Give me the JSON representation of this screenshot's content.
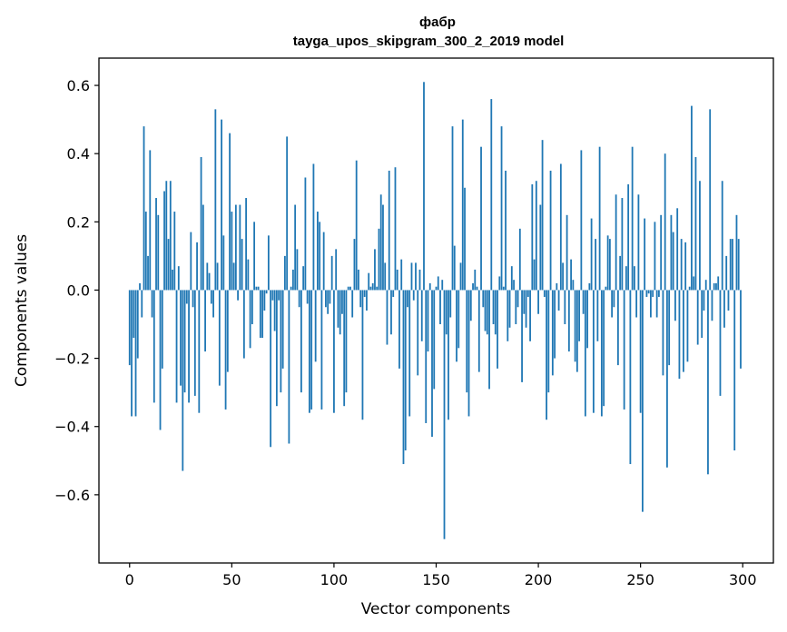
{
  "chart_data": {
    "type": "bar",
    "title": "фабр",
    "subtitle": "tayga_upos_skipgram_300_2_2019 model",
    "xlabel": "Vector components",
    "ylabel": "Components values",
    "xlim": [
      -15,
      315
    ],
    "ylim": [
      -0.8,
      0.68
    ],
    "xticks": [
      {
        "value": 0,
        "label": "0"
      },
      {
        "value": 50,
        "label": "50"
      },
      {
        "value": 100,
        "label": "100"
      },
      {
        "value": 150,
        "label": "150"
      },
      {
        "value": 200,
        "label": "200"
      },
      {
        "value": 250,
        "label": "250"
      },
      {
        "value": 300,
        "label": "300"
      }
    ],
    "yticks": [
      {
        "value": 0.6,
        "label": "0.6"
      },
      {
        "value": 0.4,
        "label": "0.4"
      },
      {
        "value": 0.2,
        "label": "0.2"
      },
      {
        "value": 0.0,
        "label": "0.0"
      },
      {
        "value": -0.2,
        "label": "−0.2"
      },
      {
        "value": -0.4,
        "label": "−0.4"
      },
      {
        "value": -0.6,
        "label": "−0.6"
      }
    ],
    "bar_color": "#1f77b4",
    "values": [
      -0.22,
      -0.37,
      -0.14,
      -0.37,
      -0.2,
      0.02,
      -0.08,
      0.48,
      0.23,
      0.1,
      0.41,
      -0.08,
      -0.33,
      0.27,
      0.22,
      -0.41,
      -0.23,
      0.29,
      0.32,
      0.15,
      0.32,
      0.06,
      0.23,
      -0.33,
      0.07,
      -0.28,
      -0.53,
      -0.3,
      -0.04,
      -0.33,
      0.17,
      -0.05,
      -0.31,
      0.14,
      -0.36,
      0.39,
      0.25,
      -0.18,
      0.08,
      0.05,
      -0.04,
      -0.08,
      0.53,
      0.08,
      -0.28,
      0.5,
      0.16,
      -0.35,
      -0.24,
      0.46,
      0.23,
      0.08,
      0.25,
      -0.03,
      0.25,
      0.15,
      -0.2,
      0.27,
      0.09,
      -0.17,
      -0.1,
      0.2,
      0.01,
      0.01,
      -0.14,
      -0.14,
      -0.06,
      -0.01,
      0.16,
      -0.46,
      -0.03,
      -0.12,
      -0.34,
      -0.03,
      -0.3,
      -0.23,
      0.1,
      0.45,
      -0.45,
      0.01,
      0.06,
      0.25,
      0.12,
      -0.05,
      -0.3,
      0.07,
      0.33,
      -0.04,
      -0.36,
      -0.35,
      0.37,
      -0.21,
      0.23,
      0.2,
      -0.35,
      0.17,
      -0.05,
      -0.07,
      -0.04,
      0.1,
      -0.36,
      0.12,
      -0.11,
      -0.13,
      -0.07,
      -0.34,
      -0.3,
      0.01,
      0.01,
      -0.08,
      0.15,
      0.38,
      0.06,
      -0.05,
      -0.38,
      -0.02,
      -0.06,
      0.05,
      0.01,
      0.02,
      0.12,
      0.01,
      0.18,
      0.28,
      0.25,
      0.08,
      -0.16,
      0.35,
      -0.13,
      -0.02,
      0.36,
      0.06,
      -0.23,
      0.09,
      -0.51,
      -0.47,
      -0.05,
      -0.37,
      0.08,
      -0.03,
      0.08,
      -0.25,
      0.06,
      -0.15,
      0.61,
      -0.39,
      -0.18,
      0.02,
      -0.43,
      -0.29,
      0.01,
      0.04,
      -0.1,
      0.03,
      -0.73,
      -0.13,
      -0.38,
      -0.08,
      0.48,
      0.13,
      -0.21,
      -0.17,
      0.08,
      0.5,
      0.3,
      -0.3,
      -0.37,
      -0.09,
      0.02,
      0.06,
      0.01,
      -0.24,
      0.42,
      -0.05,
      -0.12,
      -0.13,
      -0.29,
      0.56,
      -0.1,
      -0.13,
      -0.23,
      0.04,
      0.48,
      0.01,
      0.35,
      -0.15,
      -0.11,
      0.07,
      0.03,
      -0.1,
      -0.05,
      0.18,
      -0.27,
      -0.07,
      -0.11,
      -0.02,
      -0.15,
      0.31,
      0.09,
      0.32,
      -0.07,
      0.25,
      0.44,
      -0.02,
      -0.38,
      -0.3,
      0.35,
      -0.25,
      -0.2,
      0.02,
      -0.06,
      0.37,
      0.08,
      -0.1,
      0.22,
      -0.18,
      0.09,
      0.03,
      -0.21,
      -0.24,
      -0.15,
      0.41,
      -0.07,
      -0.37,
      -0.17,
      0.02,
      0.21,
      -0.36,
      0.15,
      -0.15,
      0.42,
      -0.37,
      -0.34,
      0.01,
      0.16,
      0.15,
      -0.08,
      -0.05,
      0.28,
      -0.22,
      0.1,
      0.27,
      -0.35,
      0.07,
      0.31,
      -0.51,
      0.42,
      0.07,
      -0.08,
      0.28,
      -0.36,
      -0.65,
      0.21,
      -0.02,
      -0.01,
      -0.08,
      -0.02,
      0.2,
      -0.08,
      -0.02,
      0.22,
      -0.25,
      0.4,
      -0.52,
      -0.22,
      0.22,
      0.17,
      -0.09,
      0.24,
      -0.26,
      0.15,
      -0.24,
      0.14,
      -0.21,
      0.01,
      0.54,
      0.04,
      0.39,
      -0.16,
      0.32,
      -0.14,
      -0.06,
      0.03,
      -0.54,
      0.53,
      -0.09,
      0.02,
      0.02,
      0.04,
      -0.31,
      0.32,
      -0.11,
      0.1,
      -0.06,
      0.15,
      0.15,
      -0.47,
      0.22,
      0.15,
      -0.23
    ]
  }
}
